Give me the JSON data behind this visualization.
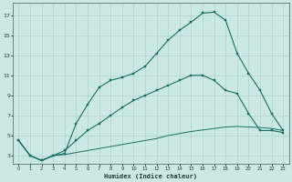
{
  "xlabel": "Humidex (Indice chaleur)",
  "background_color": "#cce8e4",
  "grid_color": "#b0d4cf",
  "line_color": "#1a6e64",
  "xlim": [
    -0.5,
    23.5
  ],
  "ylim": [
    2.2,
    18.2
  ],
  "xticks": [
    0,
    1,
    2,
    3,
    4,
    5,
    6,
    7,
    8,
    9,
    10,
    11,
    12,
    13,
    14,
    15,
    16,
    17,
    18,
    19,
    20,
    21,
    22,
    23
  ],
  "yticks": [
    3,
    5,
    7,
    9,
    11,
    13,
    15,
    17
  ],
  "curve1_x": [
    0,
    1,
    2,
    3,
    4,
    5,
    6,
    7,
    8,
    9,
    10,
    11,
    12,
    13,
    14,
    15,
    16,
    17,
    18,
    19,
    20,
    21,
    22,
    23
  ],
  "curve1_y": [
    4.5,
    3.0,
    2.5,
    3.0,
    3.2,
    6.2,
    8.1,
    9.8,
    10.5,
    10.8,
    11.2,
    11.9,
    13.2,
    14.5,
    15.5,
    16.3,
    17.2,
    17.3,
    16.5,
    13.2,
    11.2,
    9.5,
    7.2,
    5.5
  ],
  "curve2_x": [
    0,
    1,
    2,
    3,
    4,
    5,
    6,
    7,
    8,
    9,
    10,
    11,
    12,
    13,
    14,
    15,
    16,
    17,
    18,
    19,
    20,
    21,
    22,
    23
  ],
  "curve2_y": [
    4.5,
    3.0,
    2.5,
    3.0,
    3.5,
    4.5,
    5.5,
    6.2,
    7.0,
    7.8,
    8.5,
    9.0,
    9.5,
    10.0,
    10.5,
    11.0,
    11.0,
    10.5,
    9.5,
    9.2,
    7.2,
    5.5,
    5.5,
    5.3
  ],
  "curve3_x": [
    0,
    1,
    2,
    3,
    4,
    5,
    6,
    7,
    8,
    9,
    10,
    11,
    12,
    13,
    14,
    15,
    16,
    17,
    18,
    19,
    20,
    21,
    22,
    23
  ],
  "curve3_y": [
    4.5,
    3.0,
    2.5,
    3.0,
    3.1,
    3.3,
    3.5,
    3.7,
    3.9,
    4.1,
    4.3,
    4.5,
    4.7,
    5.0,
    5.2,
    5.4,
    5.55,
    5.7,
    5.85,
    5.9,
    5.85,
    5.8,
    5.7,
    5.5
  ]
}
